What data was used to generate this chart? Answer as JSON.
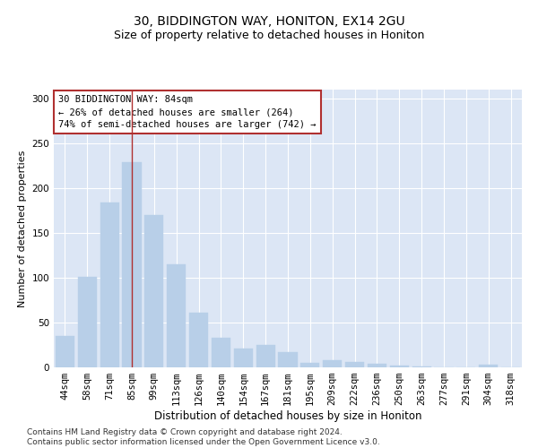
{
  "title1": "30, BIDDINGTON WAY, HONITON, EX14 2GU",
  "title2": "Size of property relative to detached houses in Honiton",
  "xlabel": "Distribution of detached houses by size in Honiton",
  "ylabel": "Number of detached properties",
  "categories": [
    "44sqm",
    "58sqm",
    "71sqm",
    "85sqm",
    "99sqm",
    "113sqm",
    "126sqm",
    "140sqm",
    "154sqm",
    "167sqm",
    "181sqm",
    "195sqm",
    "209sqm",
    "222sqm",
    "236sqm",
    "250sqm",
    "263sqm",
    "277sqm",
    "291sqm",
    "304sqm",
    "318sqm"
  ],
  "values": [
    35,
    101,
    184,
    229,
    170,
    115,
    61,
    33,
    21,
    25,
    17,
    5,
    8,
    6,
    4,
    2,
    1,
    0,
    0,
    3,
    0
  ],
  "bar_color": "#b8cfe8",
  "bar_edge_color": "#b8cfe8",
  "vline_x_index": 3,
  "vline_color": "#b03030",
  "annotation_text": "30 BIDDINGTON WAY: 84sqm\n← 26% of detached houses are smaller (264)\n74% of semi-detached houses are larger (742) →",
  "annotation_box_facecolor": "white",
  "annotation_box_edgecolor": "#b03030",
  "ylim": [
    0,
    310
  ],
  "plot_bg_color": "#dce6f5",
  "grid_color": "#ffffff",
  "footer": "Contains HM Land Registry data © Crown copyright and database right 2024.\nContains public sector information licensed under the Open Government Licence v3.0.",
  "title1_fontsize": 10,
  "title2_fontsize": 9,
  "xlabel_fontsize": 8.5,
  "ylabel_fontsize": 8,
  "tick_fontsize": 7.5,
  "annotation_fontsize": 7.5,
  "footer_fontsize": 6.5
}
